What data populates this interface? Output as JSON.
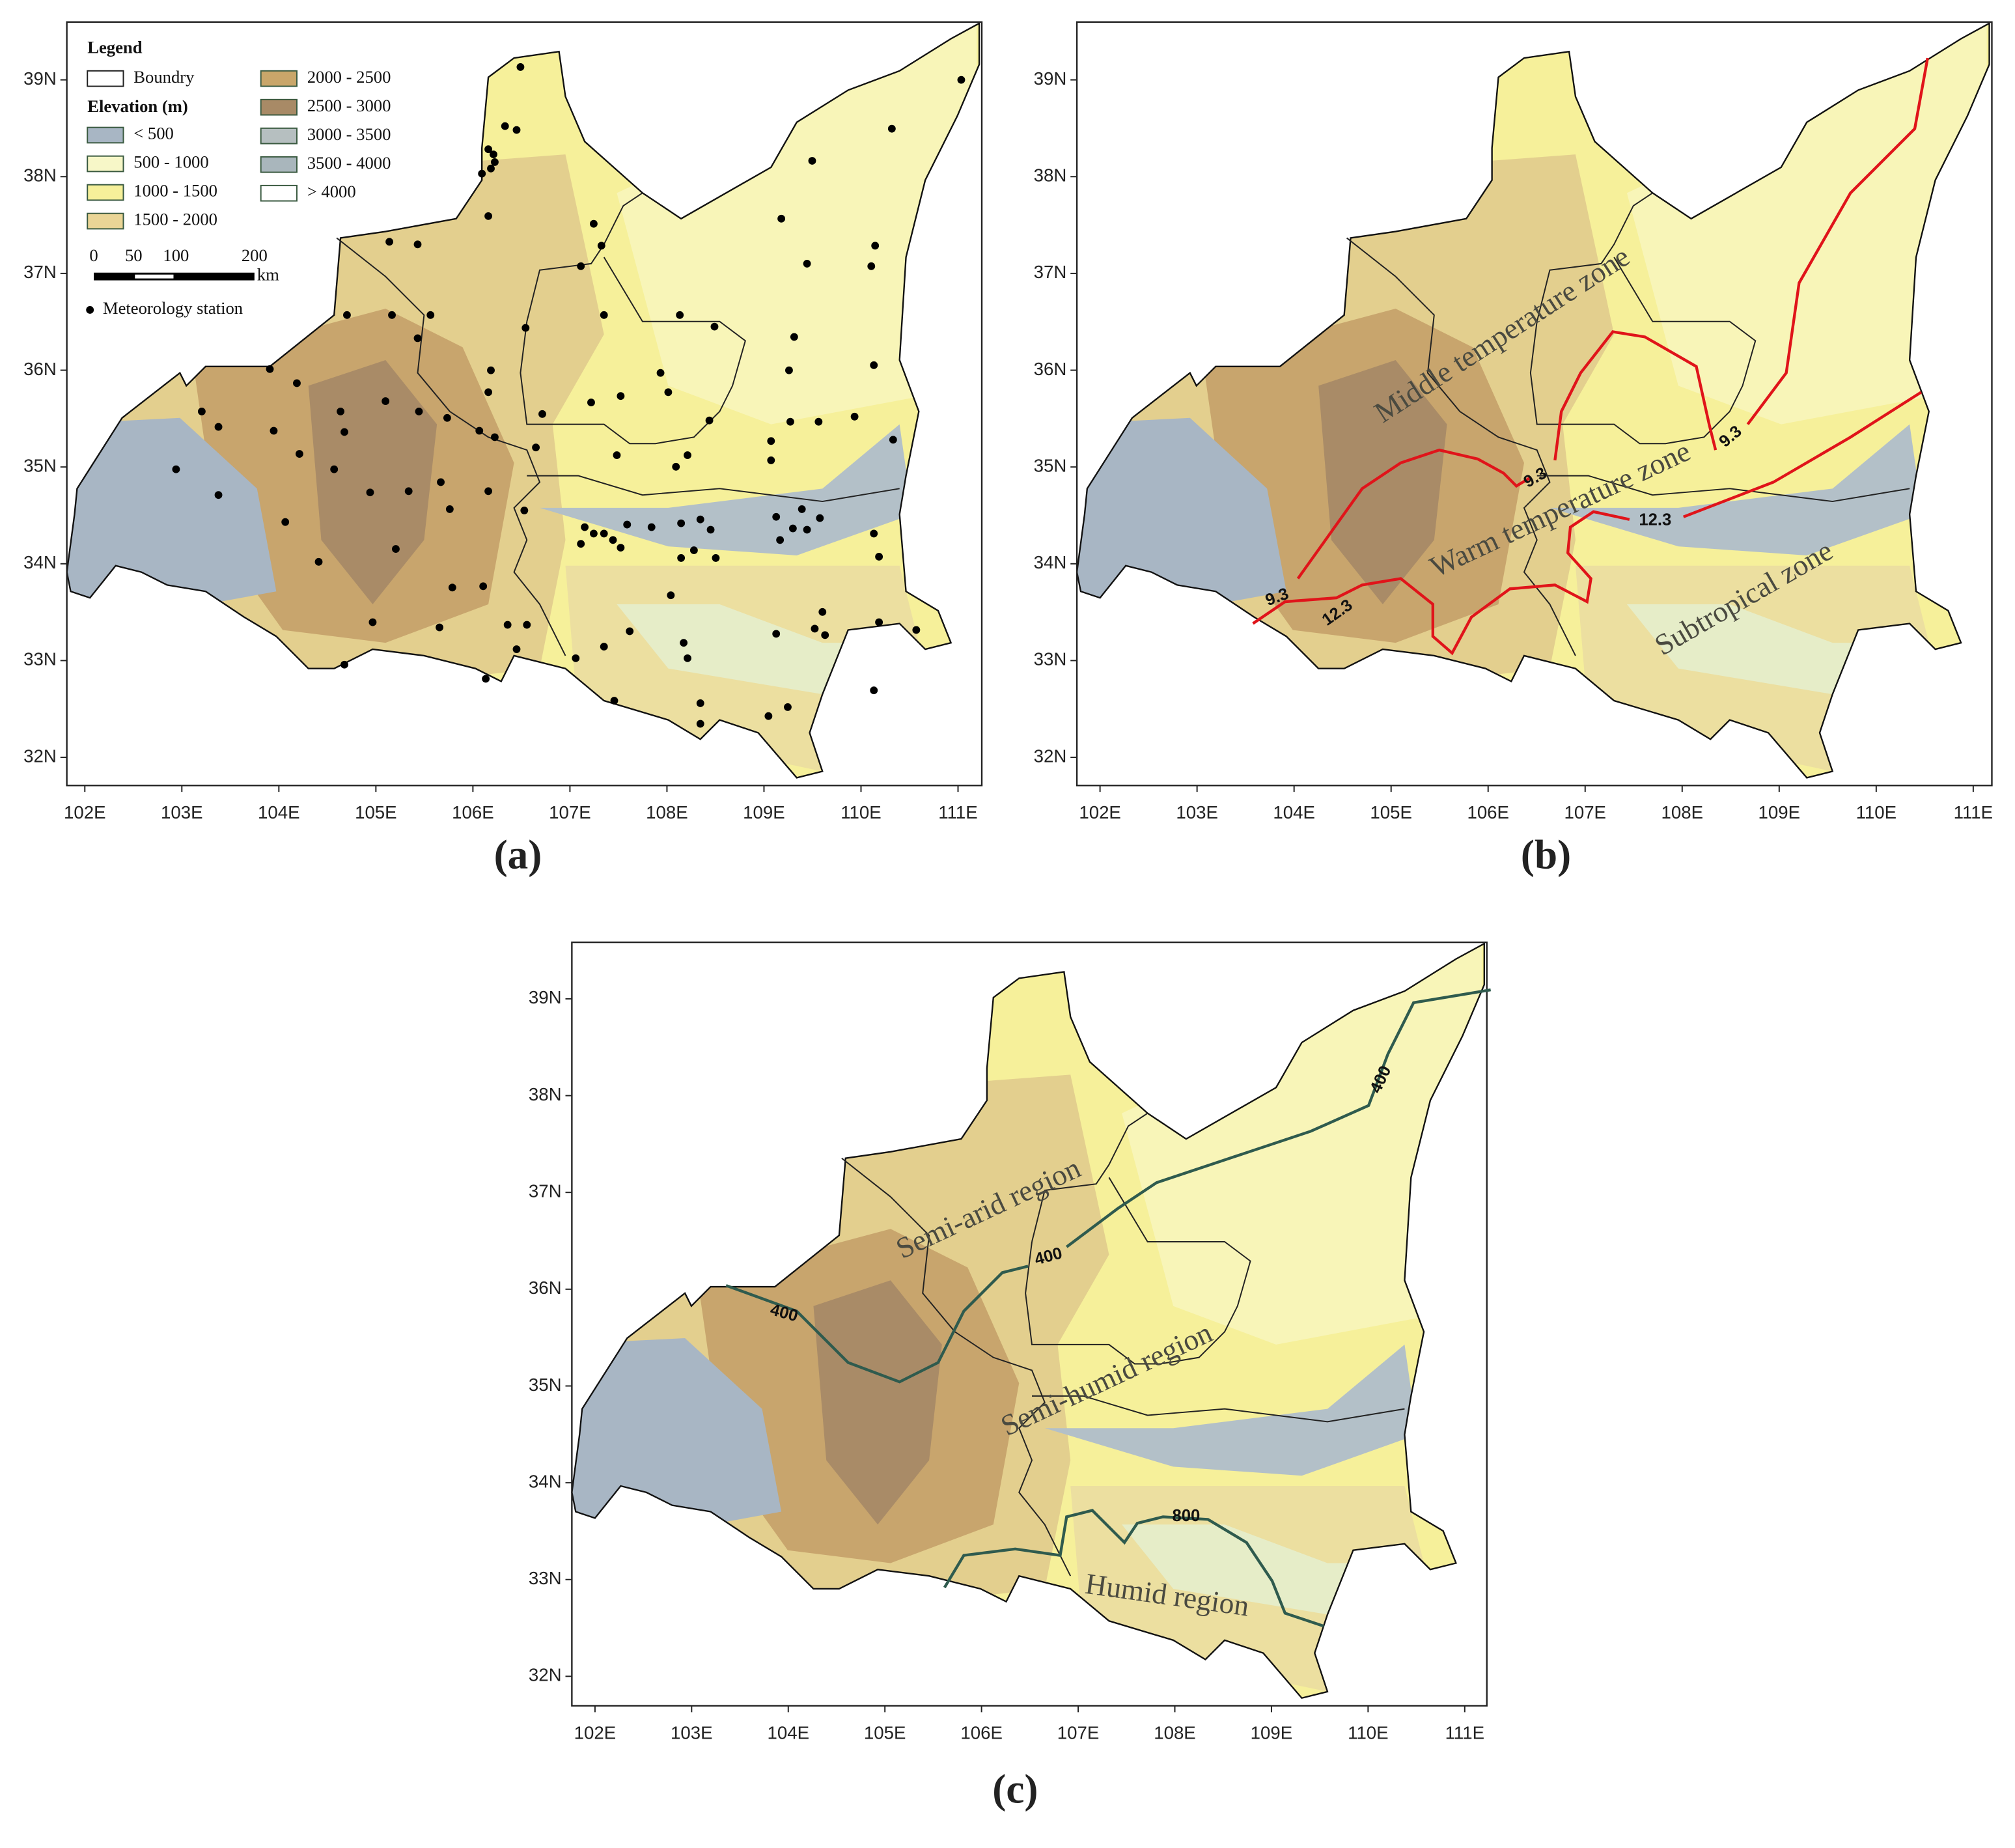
{
  "legend": {
    "title": "Legend",
    "boundary": "Boundry",
    "elevation_title": "Elevation (m)",
    "classes": [
      {
        "label": "< 500",
        "color": "#a8b6c4"
      },
      {
        "label": "500 - 1000",
        "color": "#f7f7c8"
      },
      {
        "label": "1000 - 1500",
        "color": "#f6f09a"
      },
      {
        "label": "1500 - 2000",
        "color": "#ead596"
      },
      {
        "label": "2000 - 2500",
        "color": "#c9a66a"
      },
      {
        "label": "2500 - 3000",
        "color": "#a88a66"
      },
      {
        "label": "3000 - 3500",
        "color": "#b6bfc0"
      },
      {
        "label": "3500 - 4000",
        "color": "#a9b6bc"
      },
      {
        "label": "> 4000",
        "color": "#ffffff"
      }
    ],
    "scale": [
      "0",
      "50",
      "100",
      "200"
    ],
    "scale_unit": "km",
    "station": "Meteorology station"
  },
  "panels": [
    {
      "caption": "(a)",
      "lat_ticks": [
        "39N",
        "38N",
        "37N",
        "36N",
        "35N",
        "34N",
        "33N",
        "32N"
      ],
      "lon_ticks": [
        "102E",
        "103E",
        "104E",
        "105E",
        "106E",
        "107E",
        "108E",
        "109E",
        "110E",
        "111E"
      ]
    },
    {
      "caption": "(b)",
      "lat_ticks": [
        "39N",
        "38N",
        "37N",
        "36N",
        "35N",
        "34N",
        "33N",
        "32N"
      ],
      "lon_ticks": [
        "102E",
        "103E",
        "104E",
        "105E",
        "106E",
        "107E",
        "108E",
        "109E",
        "110E",
        "111E"
      ],
      "zone_labels": [
        "Middle temperature zone",
        "Warm temperature zone",
        "Subtropical zone"
      ],
      "isoline_labels": [
        "9.3",
        "9.3",
        "9.3",
        "12.3",
        "12.3"
      ]
    },
    {
      "caption": "(c)",
      "lat_ticks": [
        "39N",
        "38N",
        "37N",
        "36N",
        "35N",
        "34N",
        "33N",
        "32N"
      ],
      "lon_ticks": [
        "102E",
        "103E",
        "104E",
        "105E",
        "106E",
        "107E",
        "108E",
        "109E",
        "110E",
        "111E"
      ],
      "zone_labels": [
        "Semi-arid region",
        "Semi-humid region",
        "Humid region"
      ],
      "isoline_labels": [
        "400",
        "400",
        "400",
        "800"
      ]
    }
  ]
}
